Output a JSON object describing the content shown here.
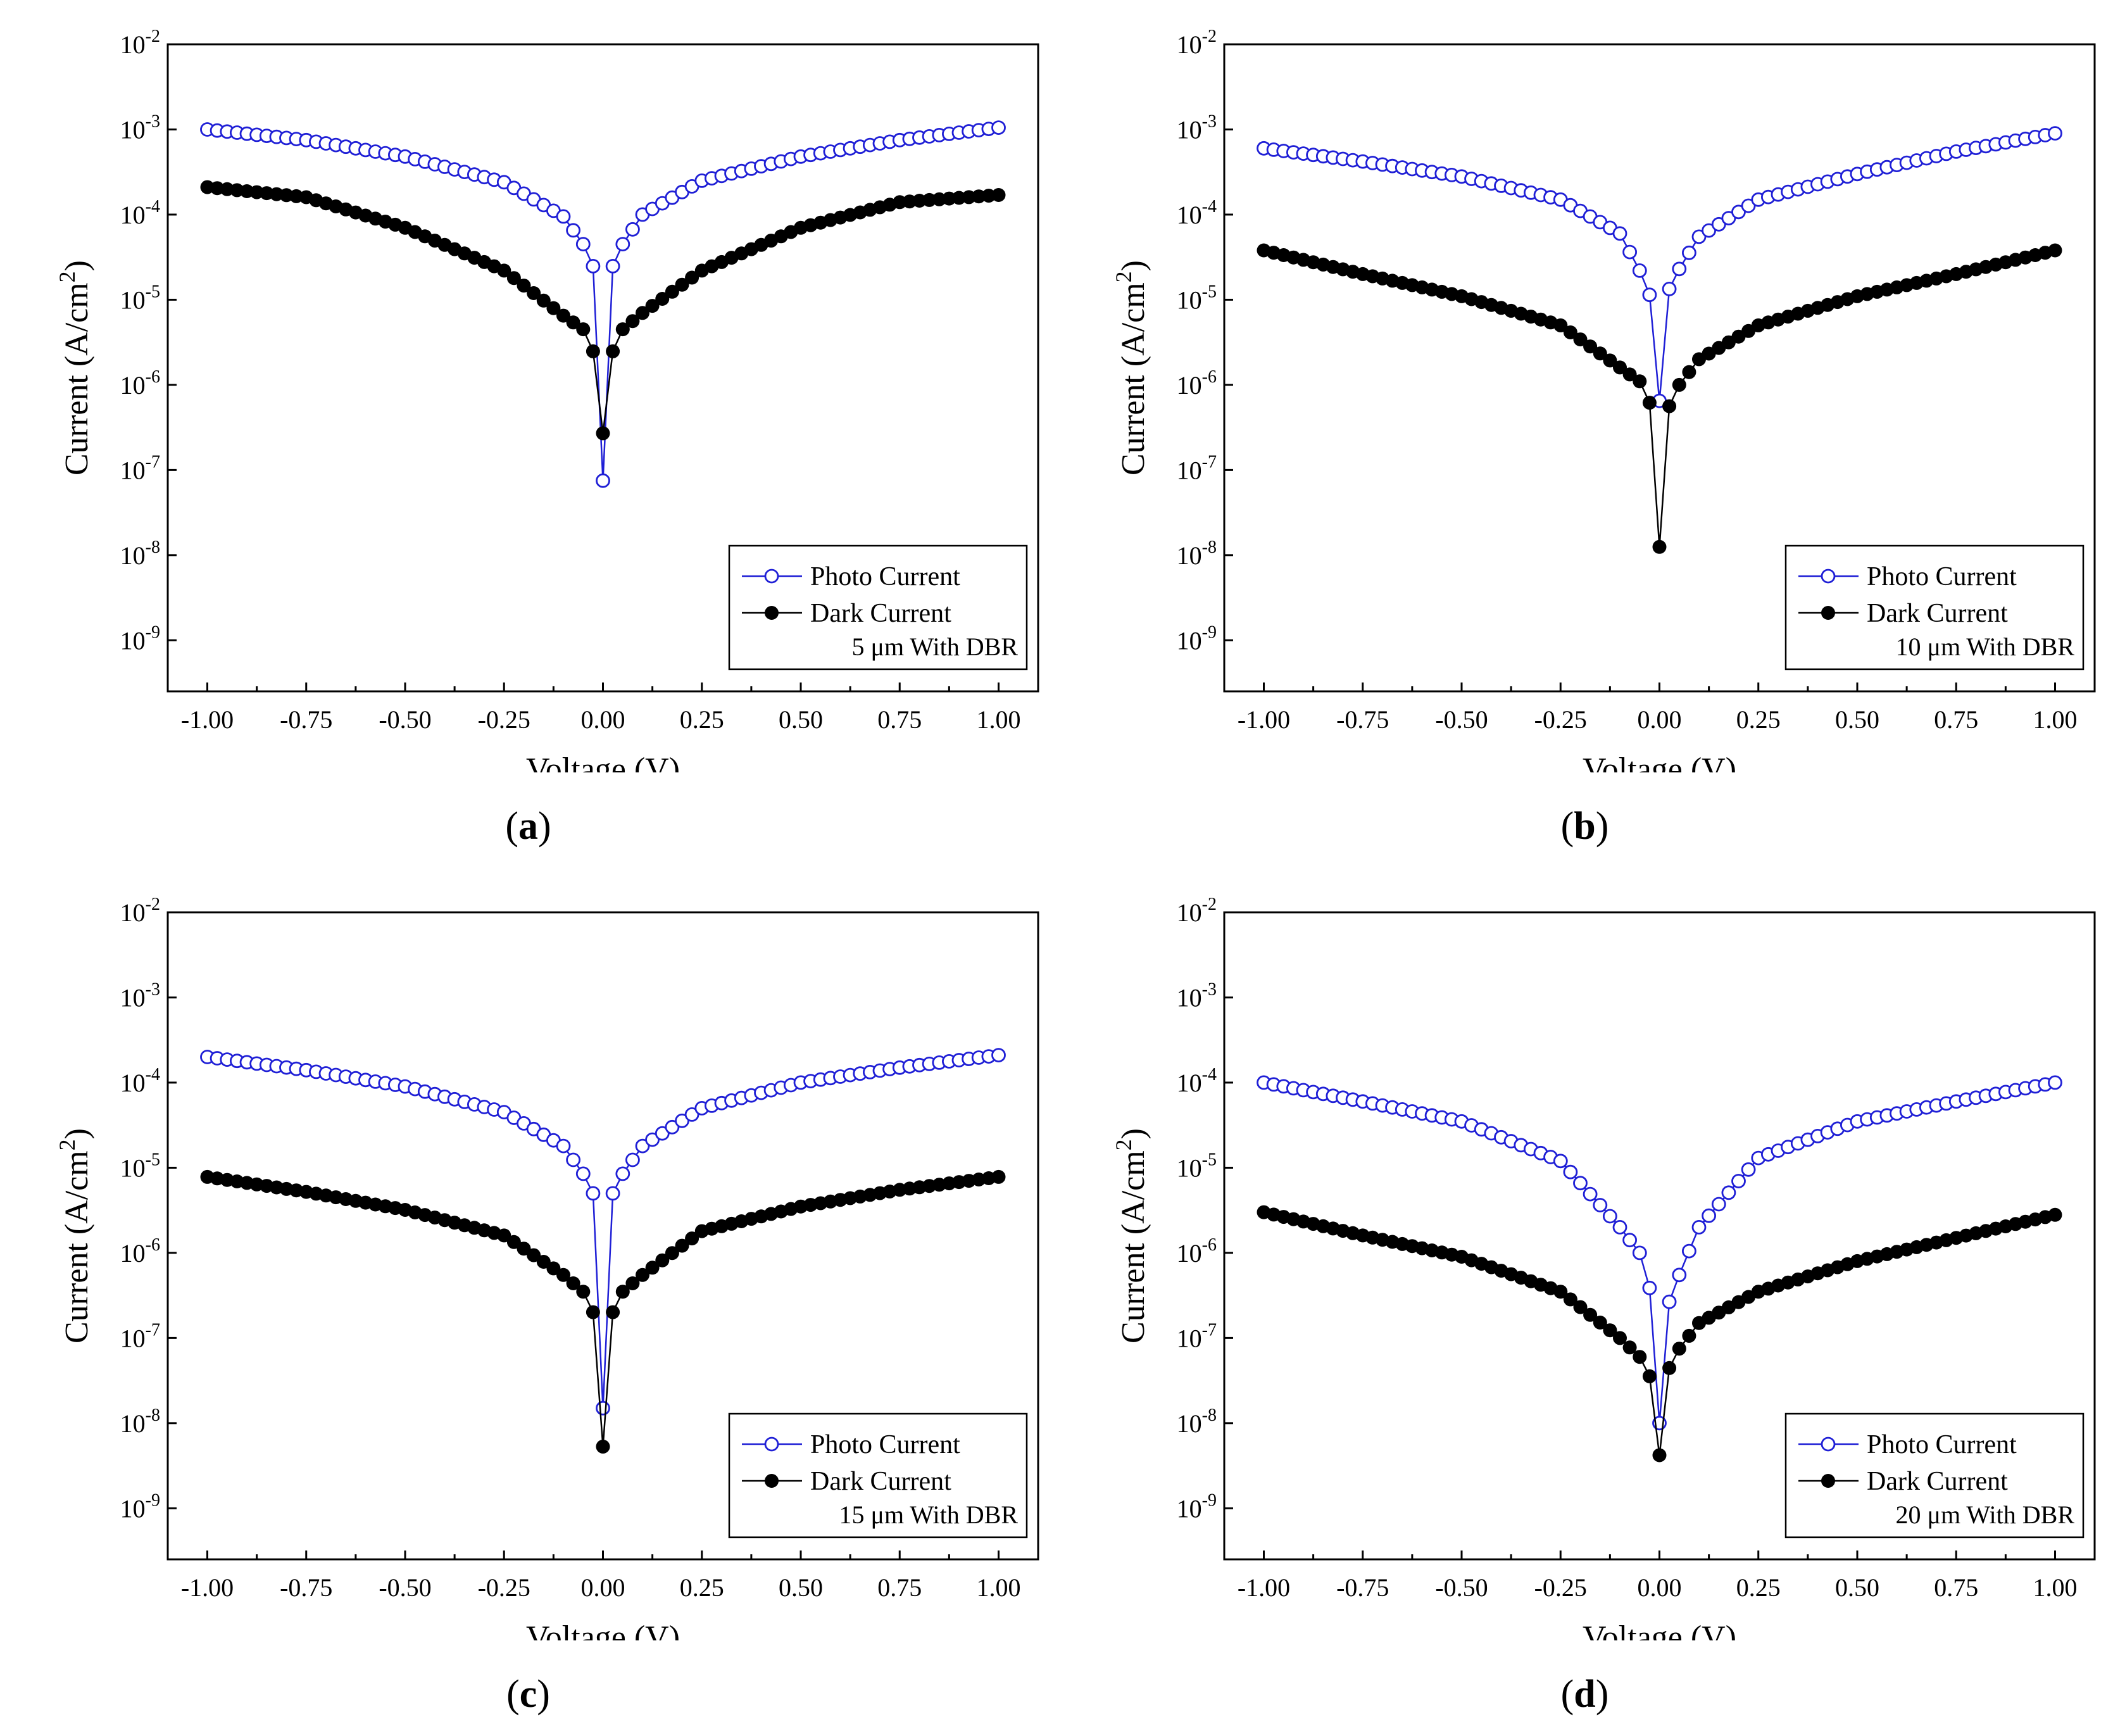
{
  "chart_data": [
    {
      "type": "scatter",
      "panel_label": "a",
      "xlabel": "Voltage (V)",
      "ylabel": "Current (A/cm2)",
      "yscale": "log",
      "xlim": [
        -1.1,
        1.1
      ],
      "ylim_exp": [
        -9.6,
        -2
      ],
      "x_ticks": [
        "-1.00",
        "-0.75",
        "-0.50",
        "-0.25",
        "0.00",
        "0.25",
        "0.50",
        "0.75",
        "1.00"
      ],
      "y_tick_exps": [
        "-9",
        "-8",
        "-7",
        "-6",
        "-5",
        "-4",
        "-3",
        "-2"
      ],
      "y_tick_base": "10",
      "legend": {
        "photo": "Photo Current",
        "dark": "Dark Current",
        "note": "5 μm With DBR"
      },
      "series": [
        {
          "name": "Photo Current",
          "marker": "open-circle",
          "color": "#1f1fd6",
          "floor_exp": -7.1,
          "floor_log": -7.1,
          "width": 0.02,
          "points": [
            [
              -1.0,
              0.001
            ],
            [
              -0.75,
              0.00075
            ],
            [
              -0.5,
              0.00048
            ],
            [
              -0.25,
              0.00024
            ],
            [
              -0.1,
              9.5e-05
            ],
            [
              -0.05,
              4.5e-05
            ],
            [
              -0.02,
              2.2e-05
            ],
            [
              0.0,
              7.5e-08
            ],
            [
              0.02,
              2.2e-05
            ],
            [
              0.05,
              4.5e-05
            ],
            [
              0.1,
              0.0001
            ],
            [
              0.25,
              0.00025
            ],
            [
              0.5,
              0.00048
            ],
            [
              0.75,
              0.00075
            ],
            [
              1.0,
              0.00105
            ]
          ]
        },
        {
          "name": "Dark Current",
          "marker": "filled-circle",
          "color": "#000000",
          "points": [
            [
              -1.0,
              0.00021
            ],
            [
              -0.75,
              0.00016
            ],
            [
              -0.5,
              7e-05
            ],
            [
              -0.25,
              2.2e-05
            ],
            [
              -0.1,
              6.5e-06
            ],
            [
              -0.05,
              4.5e-06
            ],
            [
              -0.02,
              2.2e-06
            ],
            [
              0.0,
              2.7e-07
            ],
            [
              0.02,
              2.2e-06
            ],
            [
              0.05,
              4.5e-06
            ],
            [
              0.1,
              7e-06
            ],
            [
              0.25,
              2.2e-05
            ],
            [
              0.5,
              7e-05
            ],
            [
              0.75,
              0.00014
            ],
            [
              1.0,
              0.00017
            ]
          ]
        }
      ]
    },
    {
      "type": "scatter",
      "panel_label": "b",
      "xlabel": "Voltage (V)",
      "ylabel": "Current (A/cm2)",
      "yscale": "log",
      "xlim": [
        -1.1,
        1.1
      ],
      "ylim_exp": [
        -9.6,
        -2
      ],
      "x_ticks": [
        "-1.00",
        "-0.75",
        "-0.50",
        "-0.25",
        "0.00",
        "0.25",
        "0.50",
        "0.75",
        "1.00"
      ],
      "y_tick_exps": [
        "-9",
        "-8",
        "-7",
        "-6",
        "-5",
        "-4",
        "-3",
        "-2"
      ],
      "y_tick_base": "10",
      "legend": {
        "photo": "Photo Current",
        "dark": "Dark Current",
        "note": "10 μm With DBR"
      },
      "series": [
        {
          "name": "Photo Current",
          "marker": "open-circle",
          "color": "#1f1fd6",
          "points": [
            [
              -1.0,
              0.0006
            ],
            [
              -0.75,
              0.00042
            ],
            [
              -0.5,
              0.00028
            ],
            [
              -0.25,
              0.00015
            ],
            [
              -0.1,
              6e-05
            ],
            [
              -0.05,
              2.2e-05
            ],
            [
              -0.02,
              1e-05
            ],
            [
              0.0,
              6.5e-07
            ],
            [
              0.02,
              1.2e-05
            ],
            [
              0.05,
              2.3e-05
            ],
            [
              0.1,
              5.5e-05
            ],
            [
              0.25,
              0.00015
            ],
            [
              0.5,
              0.0003
            ],
            [
              0.75,
              0.00055
            ],
            [
              1.0,
              0.0009
            ]
          ]
        },
        {
          "name": "Dark Current",
          "marker": "filled-circle",
          "color": "#000000",
          "points": [
            [
              -1.0,
              3.8e-05
            ],
            [
              -0.75,
              2e-05
            ],
            [
              -0.5,
              1.1e-05
            ],
            [
              -0.25,
              5e-06
            ],
            [
              -0.1,
              1.6e-06
            ],
            [
              -0.05,
              1.1e-06
            ],
            [
              -0.02,
              5.5e-07
            ],
            [
              0.0,
              1.25e-08
            ],
            [
              0.02,
              5e-07
            ],
            [
              0.05,
              1e-06
            ],
            [
              0.1,
              2e-06
            ],
            [
              0.25,
              5e-06
            ],
            [
              0.5,
              1.1e-05
            ],
            [
              0.75,
              2e-05
            ],
            [
              1.0,
              3.8e-05
            ]
          ]
        }
      ]
    },
    {
      "type": "scatter",
      "panel_label": "c",
      "xlabel": "Voltage (V)",
      "ylabel": "Current (A/cm2)",
      "yscale": "log",
      "xlim": [
        -1.1,
        1.1
      ],
      "ylim_exp": [
        -9.6,
        -2
      ],
      "x_ticks": [
        "-1.00",
        "-0.75",
        "-0.50",
        "-0.25",
        "0.00",
        "0.25",
        "0.50",
        "0.75",
        "1.00"
      ],
      "y_tick_exps": [
        "-9",
        "-8",
        "-7",
        "-6",
        "-5",
        "-4",
        "-3",
        "-2"
      ],
      "y_tick_base": "10",
      "legend": {
        "photo": "Photo Current",
        "dark": "Dark Current",
        "note": "15 μm With DBR"
      },
      "series": [
        {
          "name": "Photo Current",
          "marker": "open-circle",
          "color": "#1f1fd6",
          "points": [
            [
              -1.0,
              0.0002
            ],
            [
              -0.75,
              0.00014
            ],
            [
              -0.5,
              9e-05
            ],
            [
              -0.25,
              4.5e-05
            ],
            [
              -0.1,
              1.8e-05
            ],
            [
              -0.05,
              8.5e-06
            ],
            [
              -0.02,
              4.5e-06
            ],
            [
              0.0,
              1.5e-08
            ],
            [
              0.02,
              4.5e-06
            ],
            [
              0.05,
              8.5e-06
            ],
            [
              0.1,
              1.8e-05
            ],
            [
              0.25,
              5e-05
            ],
            [
              0.5,
              0.0001
            ],
            [
              0.75,
              0.00015
            ],
            [
              1.0,
              0.00021
            ]
          ]
        },
        {
          "name": "Dark Current",
          "marker": "filled-circle",
          "color": "#000000",
          "points": [
            [
              -1.0,
              7.8e-06
            ],
            [
              -0.75,
              5.2e-06
            ],
            [
              -0.5,
              3.2e-06
            ],
            [
              -0.25,
              1.6e-06
            ],
            [
              -0.1,
              5.5e-07
            ],
            [
              -0.05,
              3.5e-07
            ],
            [
              -0.02,
              1.8e-07
            ],
            [
              0.0,
              5.3e-09
            ],
            [
              0.02,
              1.8e-07
            ],
            [
              0.05,
              3.5e-07
            ],
            [
              0.1,
              5.5e-07
            ],
            [
              0.25,
              1.8e-06
            ],
            [
              0.5,
              3.5e-06
            ],
            [
              0.75,
              5.5e-06
            ],
            [
              1.0,
              7.8e-06
            ]
          ]
        }
      ]
    },
    {
      "type": "scatter",
      "panel_label": "d",
      "xlabel": "Voltage (V)",
      "ylabel": "Current (A/cm2)",
      "yscale": "log",
      "xlim": [
        -1.1,
        1.1
      ],
      "ylim_exp": [
        -9.6,
        -2
      ],
      "x_ticks": [
        "-1.00",
        "-0.75",
        "-0.50",
        "-0.25",
        "0.00",
        "0.25",
        "0.50",
        "0.75",
        "1.00"
      ],
      "y_tick_exps": [
        "-9",
        "-8",
        "-7",
        "-6",
        "-5",
        "-4",
        "-3",
        "-2"
      ],
      "y_tick_base": "10",
      "legend": {
        "photo": "Photo Current",
        "dark": "Dark Current",
        "note": "20 μm With DBR"
      },
      "series": [
        {
          "name": "Photo Current",
          "marker": "open-circle",
          "color": "#1f1fd6",
          "points": [
            [
              -1.0,
              0.0001
            ],
            [
              -0.75,
              6e-05
            ],
            [
              -0.5,
              3.5e-05
            ],
            [
              -0.25,
              1.2e-05
            ],
            [
              -0.1,
              2e-06
            ],
            [
              -0.05,
              1e-06
            ],
            [
              -0.02,
              3.2e-07
            ],
            [
              0.0,
              1e-08
            ],
            [
              0.02,
              2.3e-07
            ],
            [
              0.05,
              5.5e-07
            ],
            [
              0.1,
              2e-06
            ],
            [
              0.25,
              1.3e-05
            ],
            [
              0.5,
              3.5e-05
            ],
            [
              0.75,
              6e-05
            ],
            [
              1.0,
              0.0001
            ]
          ]
        },
        {
          "name": "Dark Current",
          "marker": "filled-circle",
          "color": "#000000",
          "points": [
            [
              -1.0,
              3e-06
            ],
            [
              -0.75,
              1.6e-06
            ],
            [
              -0.5,
              9e-07
            ],
            [
              -0.25,
              3.5e-07
            ],
            [
              -0.1,
              1e-07
            ],
            [
              -0.05,
              6e-08
            ],
            [
              -0.02,
              3.2e-08
            ],
            [
              0.0,
              4.2e-09
            ],
            [
              0.02,
              4e-08
            ],
            [
              0.05,
              7.5e-08
            ],
            [
              0.1,
              1.5e-07
            ],
            [
              0.25,
              3.5e-07
            ],
            [
              0.5,
              8e-07
            ],
            [
              0.75,
              1.5e-06
            ],
            [
              1.0,
              2.8e-06
            ]
          ]
        }
      ]
    }
  ]
}
